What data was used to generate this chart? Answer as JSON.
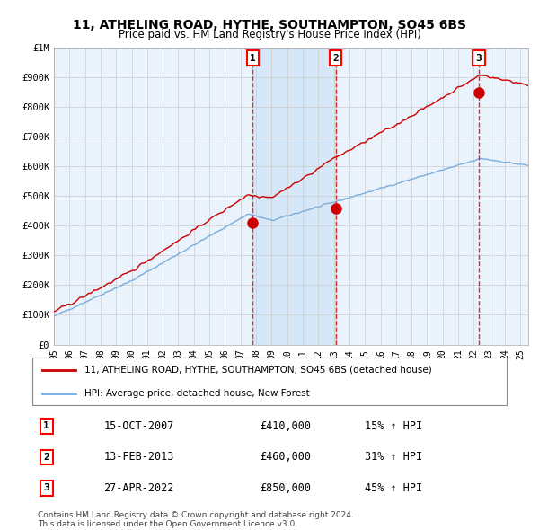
{
  "title": "11, ATHELING ROAD, HYTHE, SOUTHAMPTON, SO45 6BS",
  "subtitle": "Price paid vs. HM Land Registry's House Price Index (HPI)",
  "legend_red": "11, ATHELING ROAD, HYTHE, SOUTHAMPTON, SO45 6BS (detached house)",
  "legend_blue": "HPI: Average price, detached house, New Forest",
  "transactions": [
    {
      "num": 1,
      "date": "15-OCT-2007",
      "price": 410000,
      "pct": "15%",
      "arrow": "↑"
    },
    {
      "num": 2,
      "date": "13-FEB-2013",
      "price": 460000,
      "pct": "31%",
      "arrow": "↑"
    },
    {
      "num": 3,
      "date": "27-APR-2022",
      "price": 850000,
      "pct": "45%",
      "arrow": "↑"
    }
  ],
  "transaction_dates_decimal": [
    2007.79,
    2013.12,
    2022.32
  ],
  "footnote1": "Contains HM Land Registry data © Crown copyright and database right 2024.",
  "footnote2": "This data is licensed under the Open Government Licence v3.0.",
  "ylim": [
    0,
    1000000
  ],
  "xlim_start": 1995.0,
  "xlim_end": 2025.5,
  "red_color": "#cc0000",
  "blue_color": "#7aaddc",
  "shaded_region_start": 2007.79,
  "shaded_region_end": 2013.12,
  "background_color": "#ffffff",
  "grid_color": "#cccccc",
  "chart_bg_color": "#eaf2fb"
}
